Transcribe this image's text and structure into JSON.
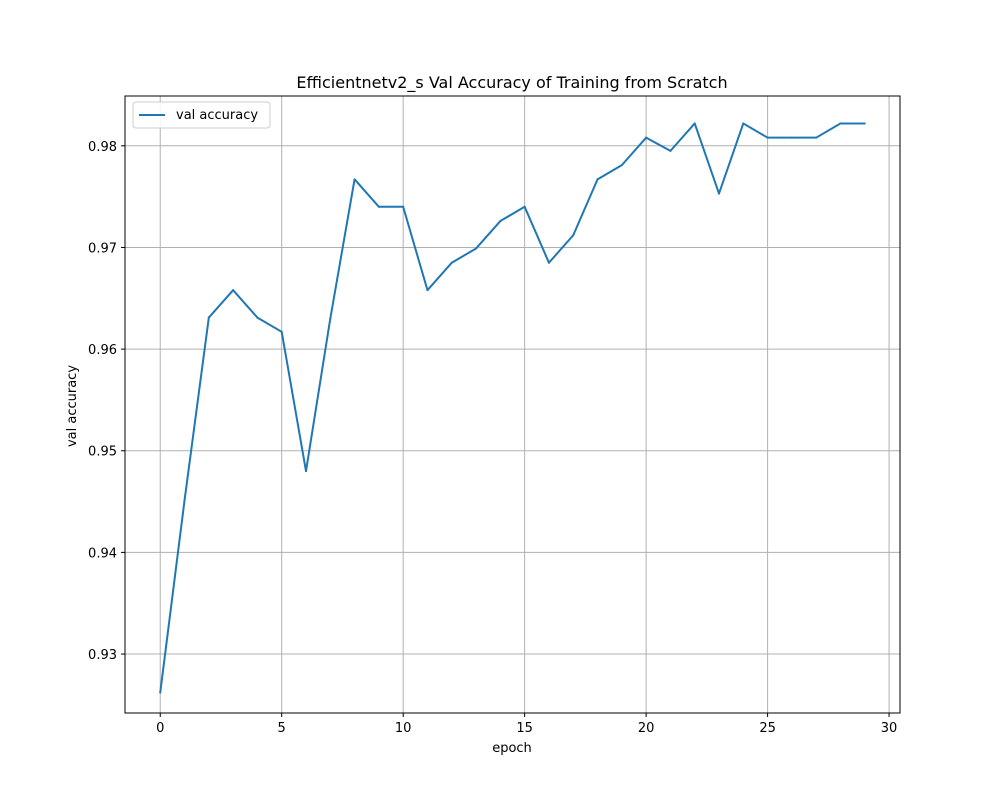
{
  "chart_data": {
    "type": "line",
    "title": "Efficientnetv2_s Val Accuracy of Training from Scratch",
    "xlabel": "epoch",
    "ylabel": "val accuracy",
    "xlim": [
      -1.45,
      30.45
    ],
    "ylim": [
      0.9242,
      0.9849
    ],
    "xticks": [
      0,
      5,
      10,
      15,
      20,
      25,
      30
    ],
    "yticks": [
      0.93,
      0.94,
      0.95,
      0.96,
      0.97,
      0.98
    ],
    "xtick_labels": [
      "0",
      "5",
      "10",
      "15",
      "20",
      "25",
      "30"
    ],
    "ytick_labels": [
      "0.93",
      "0.94",
      "0.95",
      "0.96",
      "0.97",
      "0.98"
    ],
    "grid": true,
    "legend_position": "upper-left",
    "series": [
      {
        "name": "val accuracy",
        "color": "#1f77b4",
        "x": [
          0,
          1,
          2,
          3,
          4,
          5,
          6,
          7,
          8,
          9,
          10,
          11,
          12,
          13,
          14,
          15,
          16,
          17,
          18,
          19,
          20,
          21,
          22,
          23,
          24,
          25,
          26,
          27,
          28,
          29
        ],
        "y": [
          0.9262,
          0.9451,
          0.9631,
          0.9658,
          0.9631,
          0.9617,
          0.948,
          0.963,
          0.9767,
          0.974,
          0.974,
          0.9658,
          0.9685,
          0.9699,
          0.9726,
          0.974,
          0.9685,
          0.9712,
          0.9767,
          0.9781,
          0.9808,
          0.9795,
          0.9822,
          0.9753,
          0.9822,
          0.9808,
          0.9808,
          0.9808,
          0.9822,
          0.9822
        ]
      }
    ]
  }
}
